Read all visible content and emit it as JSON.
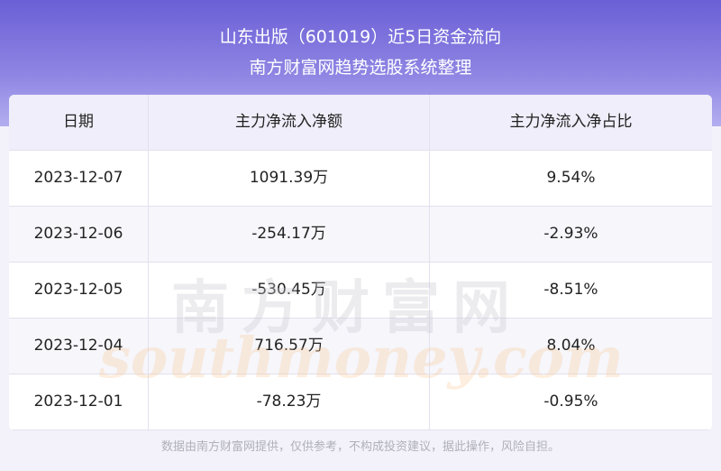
{
  "header": {
    "title": "山东出版（601019）近5日资金流向",
    "subtitle": "南方财富网趋势选股系统整理"
  },
  "table": {
    "columns": [
      "日期",
      "主力净流入净额",
      "主力净流入净占比"
    ],
    "rows": [
      [
        "2023-12-07",
        "1091.39万",
        "9.54%"
      ],
      [
        "2023-12-06",
        "-254.17万",
        "-2.93%"
      ],
      [
        "2023-12-05",
        "-530.45万",
        "-8.51%"
      ],
      [
        "2023-12-04",
        "716.57万",
        "8.04%"
      ],
      [
        "2023-12-01",
        "-78.23万",
        "-0.95%"
      ]
    ]
  },
  "watermark": {
    "name": "南方财富网",
    "site": "southmoney.com"
  },
  "footer": "数据由南方财富网提供，仅供参考，不构成投资建议，据此操作，风险自担。"
}
